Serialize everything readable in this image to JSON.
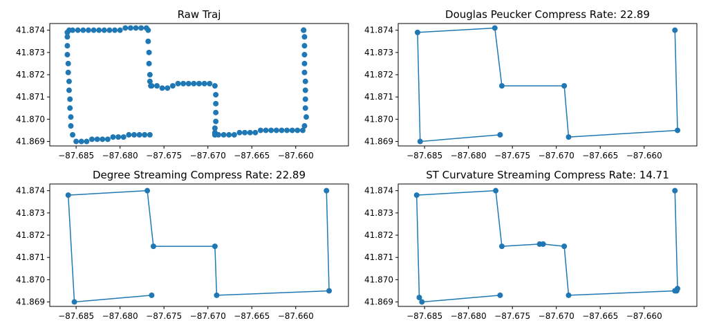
{
  "colors": {
    "series": "#1f77b4",
    "axes": "#000000",
    "background": "#ffffff"
  },
  "chart_data": [
    {
      "type": "scatter",
      "title": "Raw Traj",
      "xlabel": "",
      "ylabel": "",
      "xlim": [
        -87.688,
        -87.654
      ],
      "ylim": [
        41.8688,
        41.8743
      ],
      "xticks": [
        -87.685,
        -87.68,
        -87.675,
        -87.67,
        -87.665,
        -87.66
      ],
      "yticks": [
        41.869,
        41.87,
        41.871,
        41.872,
        41.873,
        41.874
      ],
      "markers": true,
      "connected": false,
      "series": [
        {
          "x": [
            -87.6766,
            -87.6772,
            -87.6778,
            -87.6784,
            -87.679,
            -87.6796,
            -87.6802,
            -87.6808,
            -87.6814,
            -87.682,
            -87.6826,
            -87.6832,
            -87.6838,
            -87.6844,
            -87.685,
            -87.6854,
            -87.6856,
            -87.6856,
            -87.6857,
            -87.6857,
            -87.6858,
            -87.6858,
            -87.6859,
            -87.6859,
            -87.686,
            -87.686,
            -87.686,
            -87.686,
            -87.6858,
            -87.6854,
            -87.6848,
            -87.6842,
            -87.6836,
            -87.683,
            -87.6824,
            -87.6818,
            -87.6812,
            -87.6806,
            -87.68,
            -87.6794,
            -87.6788,
            -87.6782,
            -87.6776,
            -87.677,
            -87.6768,
            -87.6768,
            -87.6767,
            -87.6767,
            -87.6766,
            -87.6766,
            -87.6765,
            -87.6764,
            -87.6758,
            -87.6752,
            -87.6746,
            -87.674,
            -87.6734,
            -87.6728,
            -87.6722,
            -87.6716,
            -87.671,
            -87.6704,
            -87.6698,
            -87.6692,
            -87.6691,
            -87.6691,
            -87.6691,
            -87.6691,
            -87.6692,
            -87.6692,
            -87.6692,
            -87.6692,
            -87.6688,
            -87.6682,
            -87.6676,
            -87.667,
            -87.6664,
            -87.6658,
            -87.6652,
            -87.6646,
            -87.664,
            -87.6634,
            -87.6628,
            -87.6622,
            -87.6616,
            -87.661,
            -87.6604,
            -87.6598,
            -87.6592,
            -87.659,
            -87.6588,
            -87.6589,
            -87.6589,
            -87.6589,
            -87.6589,
            -87.659,
            -87.659,
            -87.659,
            -87.659,
            -87.659,
            -87.6591,
            -87.6591,
            -87.6591
          ],
          "y": [
            41.8693,
            41.8693,
            41.8693,
            41.8693,
            41.8693,
            41.8692,
            41.8692,
            41.8692,
            41.8691,
            41.8691,
            41.8691,
            41.8691,
            41.869,
            41.869,
            41.869,
            41.8693,
            41.8697,
            41.8701,
            41.8705,
            41.8709,
            41.8713,
            41.8717,
            41.8721,
            41.8725,
            41.8729,
            41.8733,
            41.8737,
            41.8739,
            41.874,
            41.874,
            41.874,
            41.874,
            41.874,
            41.874,
            41.874,
            41.874,
            41.874,
            41.874,
            41.874,
            41.8741,
            41.8741,
            41.8741,
            41.8741,
            41.8741,
            41.874,
            41.8735,
            41.873,
            41.8725,
            41.872,
            41.8717,
            41.8715,
            41.8715,
            41.8715,
            41.8714,
            41.8714,
            41.8715,
            41.8716,
            41.8716,
            41.8716,
            41.8716,
            41.8716,
            41.8716,
            41.8716,
            41.8715,
            41.8711,
            41.8707,
            41.8703,
            41.8699,
            41.8696,
            41.8694,
            41.8693,
            41.8693,
            41.8693,
            41.8693,
            41.8693,
            41.8693,
            41.8694,
            41.8694,
            41.8694,
            41.8694,
            41.8695,
            41.8695,
            41.8695,
            41.8695,
            41.8695,
            41.8695,
            41.8695,
            41.8695,
            41.8695,
            41.8697,
            41.8701,
            41.8705,
            41.8709,
            41.8713,
            41.8717,
            41.8721,
            41.8725,
            41.8729,
            41.8733,
            41.8737,
            41.874,
            41.874,
            41.874
          ]
        }
      ]
    },
    {
      "type": "line",
      "title": "Douglas Peucker Compress Rate: 22.89",
      "xlabel": "",
      "ylabel": "",
      "xlim": [
        -87.688,
        -87.654
      ],
      "ylim": [
        41.8688,
        41.8743
      ],
      "xticks": [
        -87.685,
        -87.68,
        -87.675,
        -87.67,
        -87.665,
        -87.66
      ],
      "yticks": [
        41.869,
        41.87,
        41.871,
        41.872,
        41.873,
        41.874
      ],
      "markers": true,
      "connected": true,
      "series": [
        {
          "x": [
            -87.6764,
            -87.6855,
            -87.6858,
            -87.677,
            -87.6762,
            -87.6691,
            -87.6686,
            -87.6562,
            -87.6565
          ],
          "y": [
            41.8693,
            41.869,
            41.8739,
            41.8741,
            41.8715,
            41.8715,
            41.8692,
            41.8695,
            41.874
          ]
        }
      ]
    },
    {
      "type": "line",
      "title": "Degree Streaming Compress Rate: 22.89",
      "xlabel": "",
      "ylabel": "",
      "xlim": [
        -87.688,
        -87.654
      ],
      "ylim": [
        41.8688,
        41.8743
      ],
      "xticks": [
        -87.685,
        -87.68,
        -87.675,
        -87.67,
        -87.665,
        -87.66
      ],
      "yticks": [
        41.869,
        41.87,
        41.871,
        41.872,
        41.873,
        41.874
      ],
      "markers": true,
      "connected": true,
      "series": [
        {
          "x": [
            -87.6764,
            -87.6852,
            -87.6859,
            -87.6769,
            -87.6762,
            -87.6692,
            -87.669,
            -87.6562,
            -87.6565
          ],
          "y": [
            41.8693,
            41.869,
            41.8738,
            41.874,
            41.8715,
            41.8715,
            41.8693,
            41.8695,
            41.874
          ]
        }
      ]
    },
    {
      "type": "line",
      "title": "ST Curvature Streaming Compress Rate: 14.71",
      "xlabel": "",
      "ylabel": "",
      "xlim": [
        -87.688,
        -87.654
      ],
      "ylim": [
        41.8688,
        41.8743
      ],
      "xticks": [
        -87.685,
        -87.68,
        -87.675,
        -87.67,
        -87.665,
        -87.66
      ],
      "yticks": [
        41.869,
        41.87,
        41.871,
        41.872,
        41.873,
        41.874
      ],
      "markers": true,
      "connected": true,
      "series": [
        {
          "x": [
            -87.6764,
            -87.6853,
            -87.6856,
            -87.6859,
            -87.6769,
            -87.6762,
            -87.6719,
            -87.6715,
            -87.6691,
            -87.6686,
            -87.6565,
            -87.6563,
            -87.6562,
            -87.6565
          ],
          "y": [
            41.8693,
            41.869,
            41.8692,
            41.8738,
            41.874,
            41.8715,
            41.8716,
            41.8716,
            41.8715,
            41.8693,
            41.8695,
            41.8695,
            41.8696,
            41.874
          ]
        }
      ]
    }
  ]
}
